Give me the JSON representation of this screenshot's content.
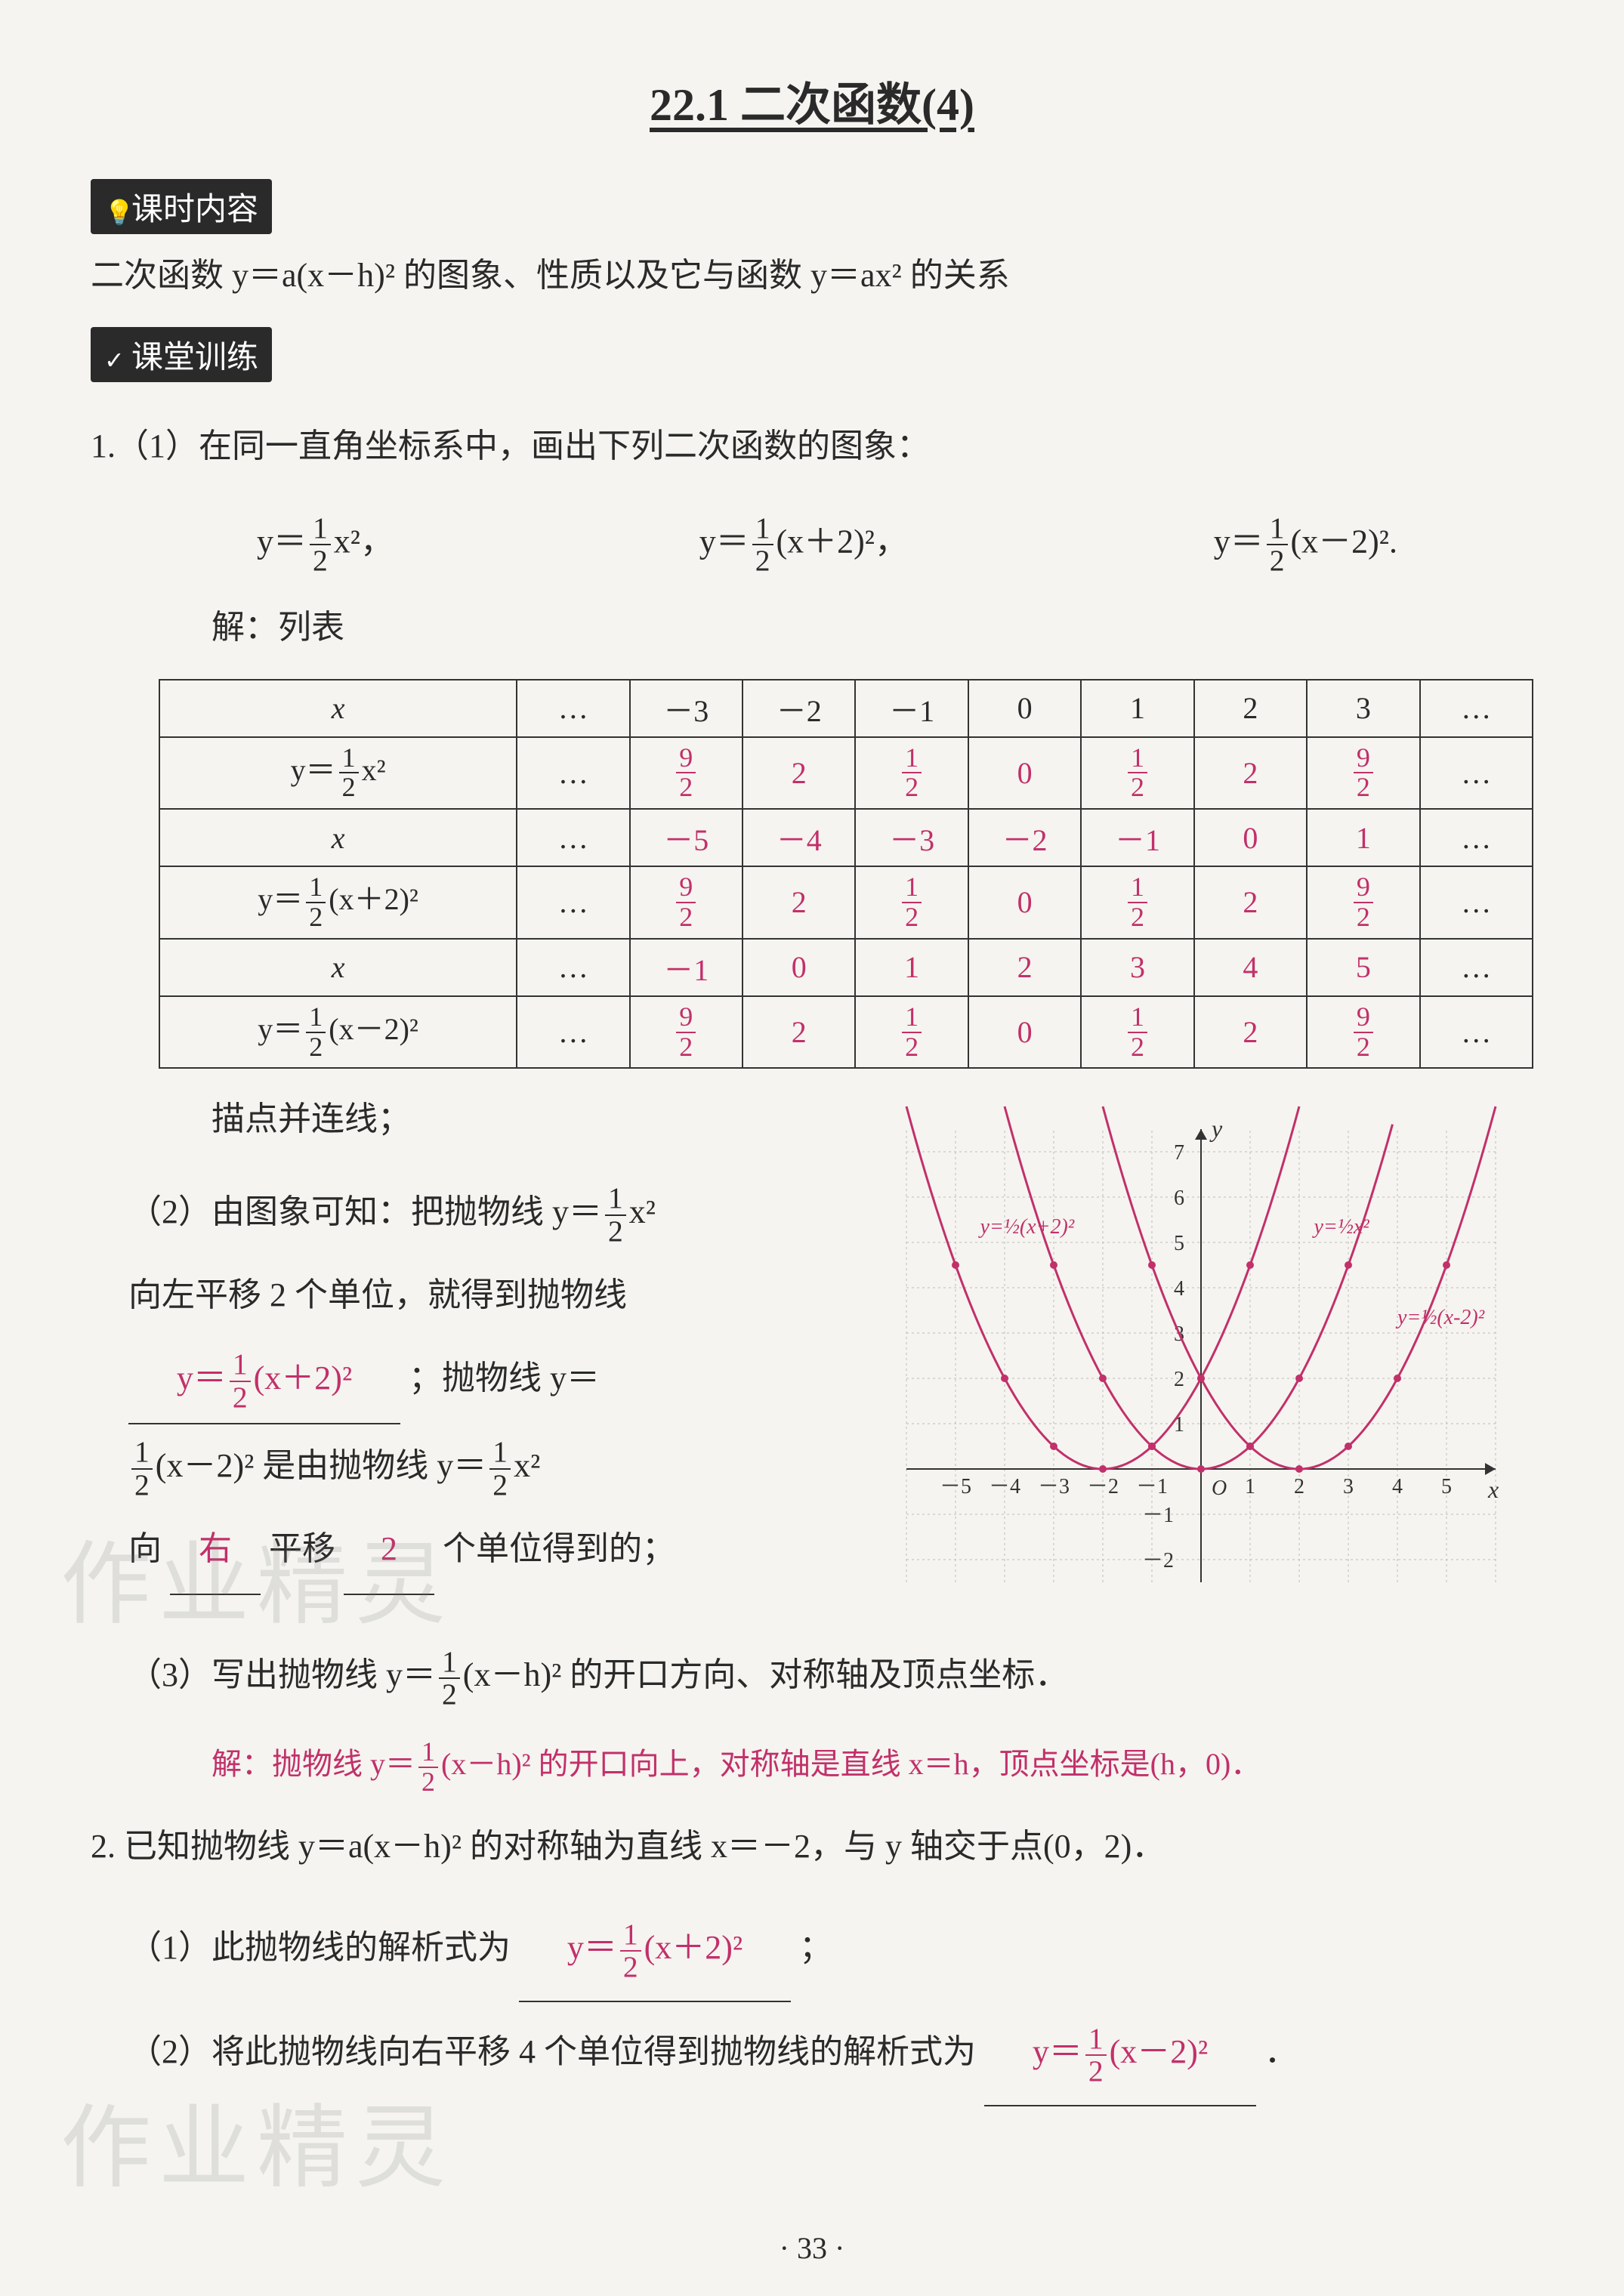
{
  "page_title": "22.1  二次函数(4)",
  "section_content_tag": "课时内容",
  "content_text": "二次函数 y＝a(x－h)² 的图象、性质以及它与函数 y＝ax² 的关系",
  "section_practice_tag": "课堂训练",
  "q1_intro": "1.（1）在同一直角坐标系中，画出下列二次函数的图象：",
  "eq1_a_pre": "y＝",
  "eq1_a_post": "x²，",
  "eq1_b_pre": "y＝",
  "eq1_b_post": "(x＋2)²，",
  "eq1_c_pre": "y＝",
  "eq1_c_post": "(x－2)².",
  "frac_half_num": "1",
  "frac_half_den": "2",
  "label_solve_table": "解：列表",
  "table": {
    "rows": [
      {
        "hdr_plain": "x",
        "cells": [
          "…",
          "－3",
          "－2",
          "－1",
          "0",
          "1",
          "2",
          "3",
          "…"
        ],
        "answer": false
      },
      {
        "hdr_frac": true,
        "hdr_pre": "y＝",
        "hdr_post": "x²",
        "cells_fracs": [
          "…",
          "9/2",
          "2",
          "1/2",
          "0",
          "1/2",
          "2",
          "9/2",
          "…"
        ],
        "answer": true
      },
      {
        "hdr_plain": "x",
        "cells": [
          "…",
          "－5",
          "－4",
          "－3",
          "－2",
          "－1",
          "0",
          "1",
          "…"
        ],
        "answer": true
      },
      {
        "hdr_frac": true,
        "hdr_pre": "y＝",
        "hdr_post": "(x＋2)²",
        "cells_fracs": [
          "…",
          "9/2",
          "2",
          "1/2",
          "0",
          "1/2",
          "2",
          "9/2",
          "…"
        ],
        "answer": true
      },
      {
        "hdr_plain": "x",
        "cells": [
          "…",
          "－1",
          "0",
          "1",
          "2",
          "3",
          "4",
          "5",
          "…"
        ],
        "answer": true
      },
      {
        "hdr_frac": true,
        "hdr_pre": "y＝",
        "hdr_post": "(x－2)²",
        "cells_fracs": [
          "…",
          "9/2",
          "2",
          "1/2",
          "0",
          "1/2",
          "2",
          "9/2",
          "…"
        ],
        "answer": true
      }
    ],
    "frac92_num": "9",
    "frac92_den": "2",
    "frac12_num": "1",
    "frac12_den": "2",
    "cell_dots": "…",
    "cell_2": "2",
    "cell_0": "0"
  },
  "label_plot": "描点并连线；",
  "q1_2_a": "（2）由图象可知：把抛物线 y＝",
  "q1_2_a_post": "x²",
  "q1_2_b": "向左平移 2 个单位，就得到抛物线",
  "q1_2_blank1_pre": "y＝",
  "q1_2_blank1_post": "(x＋2)²",
  "q1_2_c_pre": "；抛物线 y＝",
  "q1_2_d_pre": "",
  "q1_2_d_body": "(x－2)² 是由抛物线 y＝",
  "q1_2_d_post": "x²",
  "q1_2_e_pre": "向",
  "q1_2_blank2": "右",
  "q1_2_e_mid": "平移",
  "q1_2_blank3": "2",
  "q1_2_e_post": "个单位得到的；",
  "q1_3_pre": "（3）写出抛物线 y＝",
  "q1_3_post": "(x－h)² 的开口方向、对称轴及顶点坐标．",
  "q1_3_ans_pre": "解：抛物线 y＝",
  "q1_3_ans_post": "(x－h)² 的开口向上，对称轴是直线 x＝h，顶点坐标是(h，0)．",
  "q2_intro": "2. 已知抛物线 y＝a(x－h)² 的对称轴为直线 x＝－2，与 y 轴交于点(0，2)．",
  "q2_1_pre": "（1）此抛物线的解析式为",
  "q2_1_ans_pre": "y＝",
  "q2_1_ans_post": "(x＋2)²",
  "q2_1_tail": "；",
  "q2_2_pre": "（2）将此抛物线向右平移 4 个单位得到抛物线的解析式为",
  "q2_2_ans_pre": "y＝",
  "q2_2_ans_post": "(x－2)²",
  "q2_2_tail": "．",
  "chart": {
    "type": "line-parabolas",
    "xlim": [
      -6,
      6
    ],
    "ylim": [
      -2.5,
      7.5
    ],
    "xticks": [
      -5,
      -4,
      -3,
      -2,
      -1,
      1,
      2,
      3,
      4,
      5
    ],
    "yticks": [
      -2,
      -1,
      1,
      2,
      3,
      4,
      5,
      6,
      7
    ],
    "grid_color": "#bdbdbd",
    "axis_color": "#333333",
    "background_color": "#f5f4f0",
    "series": [
      {
        "label": "y=½(x+2)²",
        "color": "#c2306a",
        "vertex_x": -2
      },
      {
        "label": "y=½x²",
        "color": "#c2306a",
        "vertex_x": 0
      },
      {
        "label": "y=½(x-2)²",
        "color": "#c2306a",
        "vertex_x": 2
      }
    ],
    "label_fontsize": 28,
    "marker_radius": 5,
    "line_width": 3,
    "y_label": "y",
    "x_label": "x",
    "origin_label": "O"
  },
  "watermark1": "作业精灵",
  "watermark2": "作业精灵",
  "page_number": "· 33 ·"
}
